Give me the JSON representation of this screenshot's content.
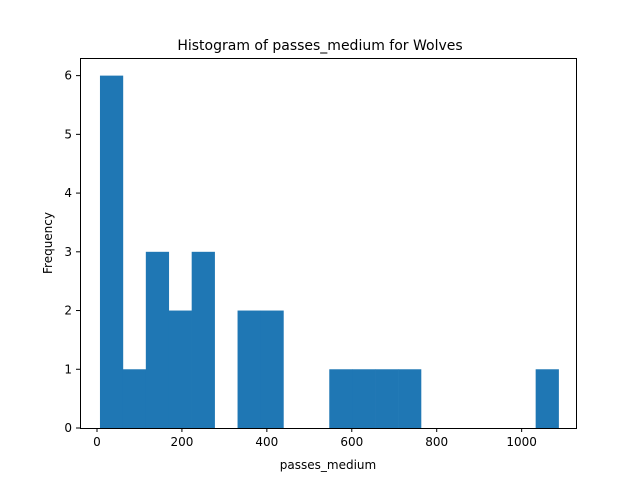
{
  "chart_data": {
    "type": "bar",
    "title": "Histogram of passes_medium for Wolves",
    "xlabel": "passes_medium",
    "ylabel": "Frequency",
    "xlim": [
      -40,
      1128
    ],
    "ylim": [
      0,
      6.3
    ],
    "xticks": [
      0,
      200,
      400,
      600,
      800,
      1000
    ],
    "xtick_labels": [
      "0",
      "200",
      "400",
      "600",
      "800",
      "1000"
    ],
    "yticks": [
      0,
      1,
      2,
      3,
      4,
      5,
      6
    ],
    "ytick_labels": [
      "0",
      "1",
      "2",
      "3",
      "4",
      "5",
      "6"
    ],
    "bin_edges": [
      7,
      61,
      115,
      169,
      223,
      277,
      331,
      385,
      439,
      493,
      547,
      601,
      655,
      709,
      763,
      817,
      871,
      925,
      979,
      1033,
      1087
    ],
    "counts": [
      6,
      1,
      3,
      2,
      3,
      0,
      2,
      2,
      0,
      0,
      1,
      1,
      1,
      1,
      0,
      0,
      0,
      0,
      0,
      1
    ],
    "bar_color": "#1f77b4",
    "grid": false,
    "legend": "none"
  }
}
